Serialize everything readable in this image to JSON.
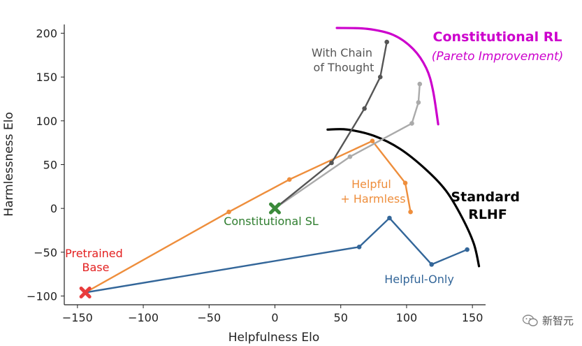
{
  "chart_data": {
    "type": "line",
    "xlabel": "Helpfulness Elo",
    "ylabel": "Harmlessness Elo",
    "xlim": [
      -160,
      160
    ],
    "ylim": [
      -110,
      210
    ],
    "xticks": [
      -150,
      -100,
      -50,
      0,
      50,
      100,
      150
    ],
    "yticks": [
      -100,
      -50,
      0,
      50,
      100,
      150,
      200
    ],
    "xtick_labels": [
      "−150",
      "−100",
      "−50",
      "0",
      "50",
      "100",
      "150"
    ],
    "ytick_labels": [
      "−100",
      "−50",
      "0",
      "50",
      "100",
      "150",
      "200"
    ],
    "grid": false,
    "series": [
      {
        "name": "Helpful-Only",
        "color": "#336699",
        "points": [
          [
            -144,
            -96
          ],
          [
            64,
            -44
          ],
          [
            87,
            -11
          ],
          [
            119,
            -64
          ],
          [
            146,
            -47
          ]
        ]
      },
      {
        "name": "Helpful + Harmless",
        "color": "#ee8e3c",
        "points": [
          [
            -144,
            -96
          ],
          [
            -35,
            -4
          ],
          [
            11,
            33
          ],
          [
            74,
            77
          ],
          [
            99,
            29
          ],
          [
            103,
            -4
          ]
        ]
      },
      {
        "name": "",
        "color": "#aaaaaa",
        "points": [
          [
            0,
            0
          ],
          [
            57,
            59
          ],
          [
            104,
            97
          ],
          [
            109,
            121
          ],
          [
            110,
            142
          ]
        ]
      },
      {
        "name": "With Chain of Thought",
        "color": "#555555",
        "points": [
          [
            0,
            0
          ],
          [
            43,
            52
          ],
          [
            68,
            114
          ],
          [
            80,
            150
          ],
          [
            85,
            190
          ]
        ]
      }
    ],
    "markers": [
      {
        "label": "Pretrained Base",
        "x": -144,
        "y": -96,
        "color": "#e83c3c",
        "shape": "x"
      },
      {
        "label": "Constitutional SL",
        "x": 0,
        "y": 0,
        "color": "#3a8a3a",
        "shape": "x"
      }
    ],
    "frontiers": [
      {
        "name": "Standard RLHF",
        "color": "#000000",
        "points": [
          [
            40,
            90
          ],
          [
            55,
            90
          ],
          [
            75,
            83
          ],
          [
            95,
            68
          ],
          [
            115,
            44
          ],
          [
            130,
            20
          ],
          [
            142,
            -10
          ],
          [
            151,
            -40
          ],
          [
            155,
            -66
          ]
        ]
      },
      {
        "name": "Constitutional RL",
        "color": "#cc00cc",
        "points": [
          [
            47,
            206
          ],
          [
            70,
            205
          ],
          [
            90,
            198
          ],
          [
            105,
            182
          ],
          [
            115,
            160
          ],
          [
            120,
            135
          ],
          [
            124,
            96
          ]
        ]
      }
    ]
  },
  "annotations": {
    "pretrained_line1": "Pretrained",
    "pretrained_line2": "Base",
    "constitutional_sl": "Constitutional SL",
    "chain_line1": "With Chain",
    "chain_line2": "of Thought",
    "helpful_line1": "Helpful",
    "helpful_line2": "+ Harmless",
    "helpful_only": "Helpful-Only",
    "standard_line1": "Standard",
    "standard_line2": "RLHF",
    "crl_title": "Constitutional RL",
    "crl_subtitle": "(Pareto Improvement)"
  },
  "watermark": {
    "text": "新智元",
    "icon": "wechat-icon"
  }
}
